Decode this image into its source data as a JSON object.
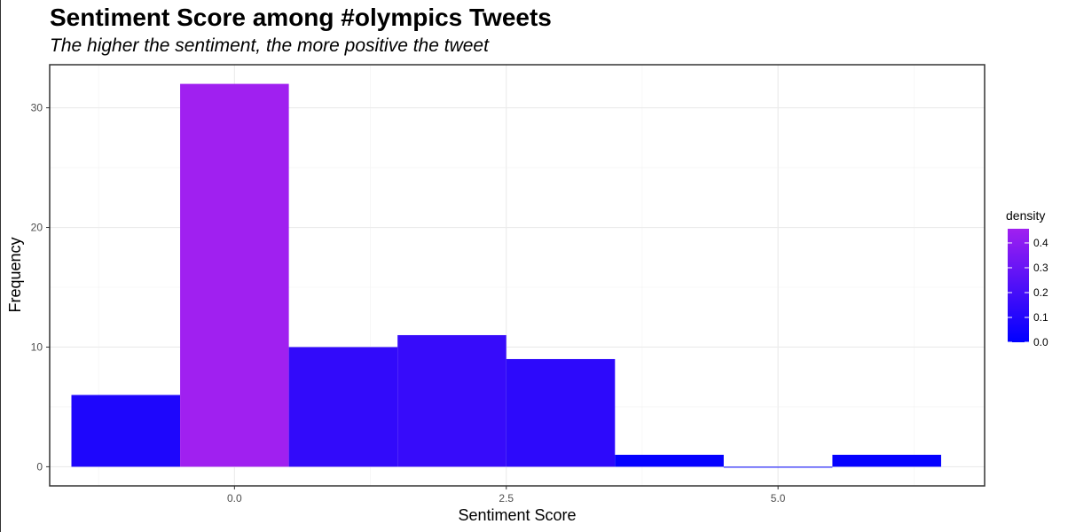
{
  "chart_data": {
    "type": "bar",
    "title": "Sentiment Score among #olympics Tweets",
    "subtitle": "The higher the sentiment, the more positive the tweet",
    "xlabel": "Sentiment Score",
    "ylabel": "Frequency",
    "xlim": [
      -1.7,
      6.9
    ],
    "ylim": [
      -1.6,
      33.6
    ],
    "x_ticks": [
      0,
      2.5,
      5
    ],
    "x_tick_labels": [
      "0.0",
      "2.5",
      "5.0"
    ],
    "y_ticks": [
      0,
      10,
      20,
      30
    ],
    "y_tick_labels": [
      "0",
      "10",
      "20",
      "30"
    ],
    "grid": true,
    "bins": [
      {
        "x_start": -1.5,
        "x_end": -0.5,
        "count": 6
      },
      {
        "x_start": -0.5,
        "x_end": 0.5,
        "count": 32
      },
      {
        "x_start": 0.5,
        "x_end": 1.5,
        "count": 10
      },
      {
        "x_start": 1.5,
        "x_end": 2.5,
        "count": 11
      },
      {
        "x_start": 2.5,
        "x_end": 3.5,
        "count": 9
      },
      {
        "x_start": 3.5,
        "x_end": 4.5,
        "count": 1
      },
      {
        "x_start": 4.5,
        "x_end": 5.5,
        "count": 0
      },
      {
        "x_start": 5.5,
        "x_end": 6.5,
        "count": 1
      }
    ],
    "legend": {
      "title": "density",
      "placement": "right",
      "min": 0,
      "max": 0.457,
      "ticks": [
        0.0,
        0.1,
        0.2,
        0.3,
        0.4
      ],
      "tick_labels": [
        "0.0",
        "0.1",
        "0.2",
        "0.3",
        "0.4"
      ],
      "low_color": "#0000ff",
      "high_color": "#a020f0"
    }
  }
}
